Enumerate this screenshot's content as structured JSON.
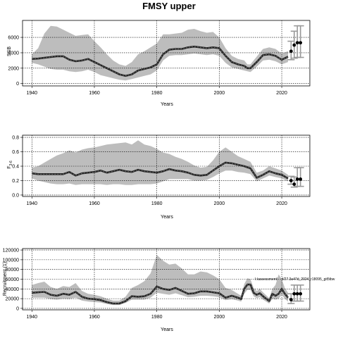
{
  "title": "FMSY upper",
  "chart_data": [
    {
      "type": "line",
      "id": "ssb",
      "ylabel": "SSB",
      "xlabel": "Years",
      "xlim": [
        1937,
        2029
      ],
      "ylim": [
        -300,
        8200
      ],
      "xticks": [
        1940,
        1960,
        1980,
        2000,
        2020
      ],
      "yticks": [
        0,
        2000,
        4000,
        6000
      ],
      "grid": true,
      "x": [
        1940,
        1942,
        1944,
        1946,
        1948,
        1950,
        1952,
        1954,
        1956,
        1958,
        1960,
        1962,
        1964,
        1966,
        1968,
        1970,
        1972,
        1974,
        1976,
        1978,
        1980,
        1982,
        1984,
        1986,
        1988,
        1990,
        1992,
        1994,
        1996,
        1998,
        2000,
        2002,
        2004,
        2006,
        2008,
        2009,
        2010,
        2012,
        2014,
        2016,
        2018,
        2020,
        2022
      ],
      "median": [
        3200,
        3250,
        3350,
        3450,
        3550,
        3550,
        3100,
        2900,
        3000,
        3200,
        2800,
        2400,
        2000,
        1600,
        1200,
        1000,
        1200,
        1700,
        1900,
        2100,
        2500,
        3800,
        4400,
        4500,
        4500,
        4700,
        4800,
        4700,
        4600,
        4700,
        4600,
        3600,
        2800,
        2500,
        2300,
        2000,
        2000,
        2800,
        3700,
        3800,
        3600,
        3100,
        3500
      ],
      "lower": [
        2700,
        2500,
        2200,
        1900,
        1800,
        1800,
        1600,
        1500,
        1600,
        1800,
        1500,
        1100,
        900,
        700,
        500,
        400,
        600,
        800,
        1000,
        1200,
        1700,
        3000,
        3600,
        3700,
        3700,
        3800,
        3900,
        3800,
        3700,
        3800,
        3600,
        2700,
        2100,
        1900,
        1700,
        1600,
        1500,
        2200,
        3000,
        3100,
        2900,
        2500,
        2800
      ],
      "upper": [
        3800,
        4600,
        6500,
        7500,
        7400,
        7000,
        6600,
        6200,
        6300,
        6400,
        5500,
        4700,
        3800,
        3000,
        2500,
        2300,
        2800,
        3800,
        4200,
        4700,
        5200,
        6400,
        6400,
        6500,
        6600,
        7000,
        7100,
        6800,
        6600,
        6700,
        6000,
        4600,
        3600,
        3200,
        3000,
        2500,
        2500,
        3500,
        4500,
        4700,
        4500,
        3900,
        4200
      ],
      "projection": {
        "x": [
          2023,
          2024,
          2025,
          2026
        ],
        "y": [
          4200,
          5000,
          5300,
          5300
        ],
        "lower": [
          3100,
          3300,
          3400,
          3400
        ],
        "upper": [
          5500,
          6800,
          7500,
          7500
        ]
      }
    },
    {
      "type": "line",
      "id": "fbar",
      "ylabel": "F",
      "ylabel_sub": "3-6",
      "xlabel": "Years",
      "xlim": [
        1937,
        2029
      ],
      "ylim": [
        -0.02,
        0.83
      ],
      "xticks": [
        1940,
        1960,
        1980,
        2000,
        2020
      ],
      "yticks": [
        0.0,
        0.2,
        0.4,
        0.6,
        0.8
      ],
      "ytick_labels": [
        "0.0",
        "0.2",
        "0.4",
        "0.6",
        "0.8"
      ],
      "grid": true,
      "x": [
        1940,
        1942,
        1944,
        1946,
        1948,
        1950,
        1952,
        1954,
        1956,
        1958,
        1960,
        1962,
        1964,
        1966,
        1968,
        1970,
        1972,
        1974,
        1976,
        1978,
        1980,
        1982,
        1984,
        1986,
        1988,
        1990,
        1992,
        1994,
        1996,
        1998,
        2000,
        2002,
        2004,
        2006,
        2008,
        2010,
        2012,
        2014,
        2016,
        2018,
        2020,
        2022
      ],
      "median": [
        0.3,
        0.29,
        0.29,
        0.29,
        0.29,
        0.29,
        0.32,
        0.27,
        0.3,
        0.31,
        0.32,
        0.34,
        0.31,
        0.33,
        0.35,
        0.33,
        0.32,
        0.35,
        0.33,
        0.32,
        0.31,
        0.33,
        0.36,
        0.34,
        0.33,
        0.31,
        0.28,
        0.27,
        0.28,
        0.34,
        0.4,
        0.45,
        0.44,
        0.42,
        0.4,
        0.37,
        0.24,
        0.28,
        0.33,
        0.3,
        0.28,
        0.23
      ],
      "lower": [
        0.23,
        0.2,
        0.18,
        0.16,
        0.15,
        0.15,
        0.16,
        0.14,
        0.15,
        0.15,
        0.15,
        0.15,
        0.14,
        0.15,
        0.15,
        0.14,
        0.14,
        0.15,
        0.15,
        0.15,
        0.16,
        0.19,
        0.22,
        0.22,
        0.22,
        0.22,
        0.2,
        0.2,
        0.21,
        0.25,
        0.3,
        0.34,
        0.34,
        0.32,
        0.31,
        0.29,
        0.19,
        0.23,
        0.27,
        0.25,
        0.23,
        0.19
      ],
      "upper": [
        0.38,
        0.4,
        0.45,
        0.5,
        0.55,
        0.58,
        0.62,
        0.59,
        0.63,
        0.65,
        0.66,
        0.68,
        0.7,
        0.71,
        0.72,
        0.73,
        0.7,
        0.76,
        0.7,
        0.68,
        0.64,
        0.59,
        0.57,
        0.53,
        0.5,
        0.46,
        0.41,
        0.38,
        0.39,
        0.48,
        0.6,
        0.66,
        0.6,
        0.54,
        0.5,
        0.46,
        0.31,
        0.34,
        0.4,
        0.37,
        0.34,
        0.28
      ],
      "projection": {
        "x": [
          2023,
          2024,
          2025,
          2026
        ],
        "y": [
          0.2,
          0.15,
          0.22,
          0.22
        ],
        "lower": [
          0.15,
          0.11,
          0.12,
          0.12
        ],
        "upper": [
          0.26,
          0.25,
          0.38,
          0.38
        ]
      }
    },
    {
      "type": "line",
      "id": "recruitment",
      "ylabel": "Recruitment (1)",
      "xlabel": "Years",
      "xlim": [
        1937,
        2029
      ],
      "ylim": [
        -3000,
        123000
      ],
      "xticks": [
        1940,
        1960,
        1980,
        2000,
        2020
      ],
      "yticks": [
        0,
        20000,
        40000,
        60000,
        80000,
        100000,
        120000
      ],
      "grid": true,
      "annotation": "I:/assessment/cod/27.3a47d_2024_r18095_git5tbw",
      "x": [
        1940,
        1942,
        1944,
        1946,
        1948,
        1950,
        1952,
        1954,
        1956,
        1958,
        1960,
        1962,
        1964,
        1966,
        1968,
        1970,
        1972,
        1974,
        1976,
        1978,
        1980,
        1982,
        1984,
        1986,
        1988,
        1990,
        1992,
        1994,
        1996,
        1998,
        2000,
        2002,
        2004,
        2006,
        2007,
        2008,
        2009,
        2010,
        2011,
        2012,
        2013,
        2014,
        2015,
        2016,
        2017,
        2018,
        2019,
        2020,
        2021,
        2022
      ],
      "median": [
        32000,
        33000,
        34000,
        28000,
        26000,
        30000,
        28000,
        34000,
        24000,
        20000,
        19000,
        17000,
        13000,
        10000,
        10000,
        15000,
        25000,
        24000,
        25000,
        30000,
        45000,
        40000,
        38000,
        42000,
        36000,
        30000,
        31000,
        35000,
        35000,
        33000,
        31000,
        22000,
        26000,
        22000,
        19000,
        40000,
        49000,
        49000,
        32000,
        28000,
        31000,
        25000,
        20000,
        15000,
        30000,
        26000,
        30000,
        40000,
        30000,
        22000
      ],
      "lower": [
        22000,
        22000,
        22000,
        19000,
        18000,
        20000,
        19000,
        22000,
        16000,
        14000,
        13000,
        12000,
        9000,
        7000,
        7000,
        11000,
        18000,
        18000,
        18000,
        22000,
        32000,
        30000,
        28000,
        31000,
        27000,
        23000,
        24000,
        26000,
        26000,
        25000,
        23000,
        17000,
        19000,
        16000,
        14000,
        30000,
        38000,
        38000,
        25000,
        21000,
        23000,
        18000,
        14000,
        10000,
        20000,
        18000,
        20000,
        28000,
        20000,
        14000
      ],
      "upper": [
        48000,
        52000,
        55000,
        44000,
        40000,
        46000,
        44000,
        52000,
        36000,
        30000,
        28000,
        25000,
        20000,
        16000,
        16000,
        24000,
        42000,
        48000,
        56000,
        72000,
        110000,
        98000,
        90000,
        92000,
        82000,
        70000,
        70000,
        76000,
        74000,
        68000,
        60000,
        42000,
        38000,
        30000,
        26000,
        50000,
        62000,
        60000,
        42000,
        36000,
        40000,
        33000,
        27000,
        21000,
        40000,
        48000,
        70000,
        60000,
        42000,
        32000
      ],
      "projection": {
        "x": [
          2023,
          2024,
          2025,
          2026
        ],
        "y": [
          18000,
          30000,
          30000,
          30000
        ],
        "lower": [
          10000,
          15000,
          15000,
          15000
        ],
        "upper": [
          30000,
          48000,
          48000,
          48000
        ]
      }
    }
  ]
}
